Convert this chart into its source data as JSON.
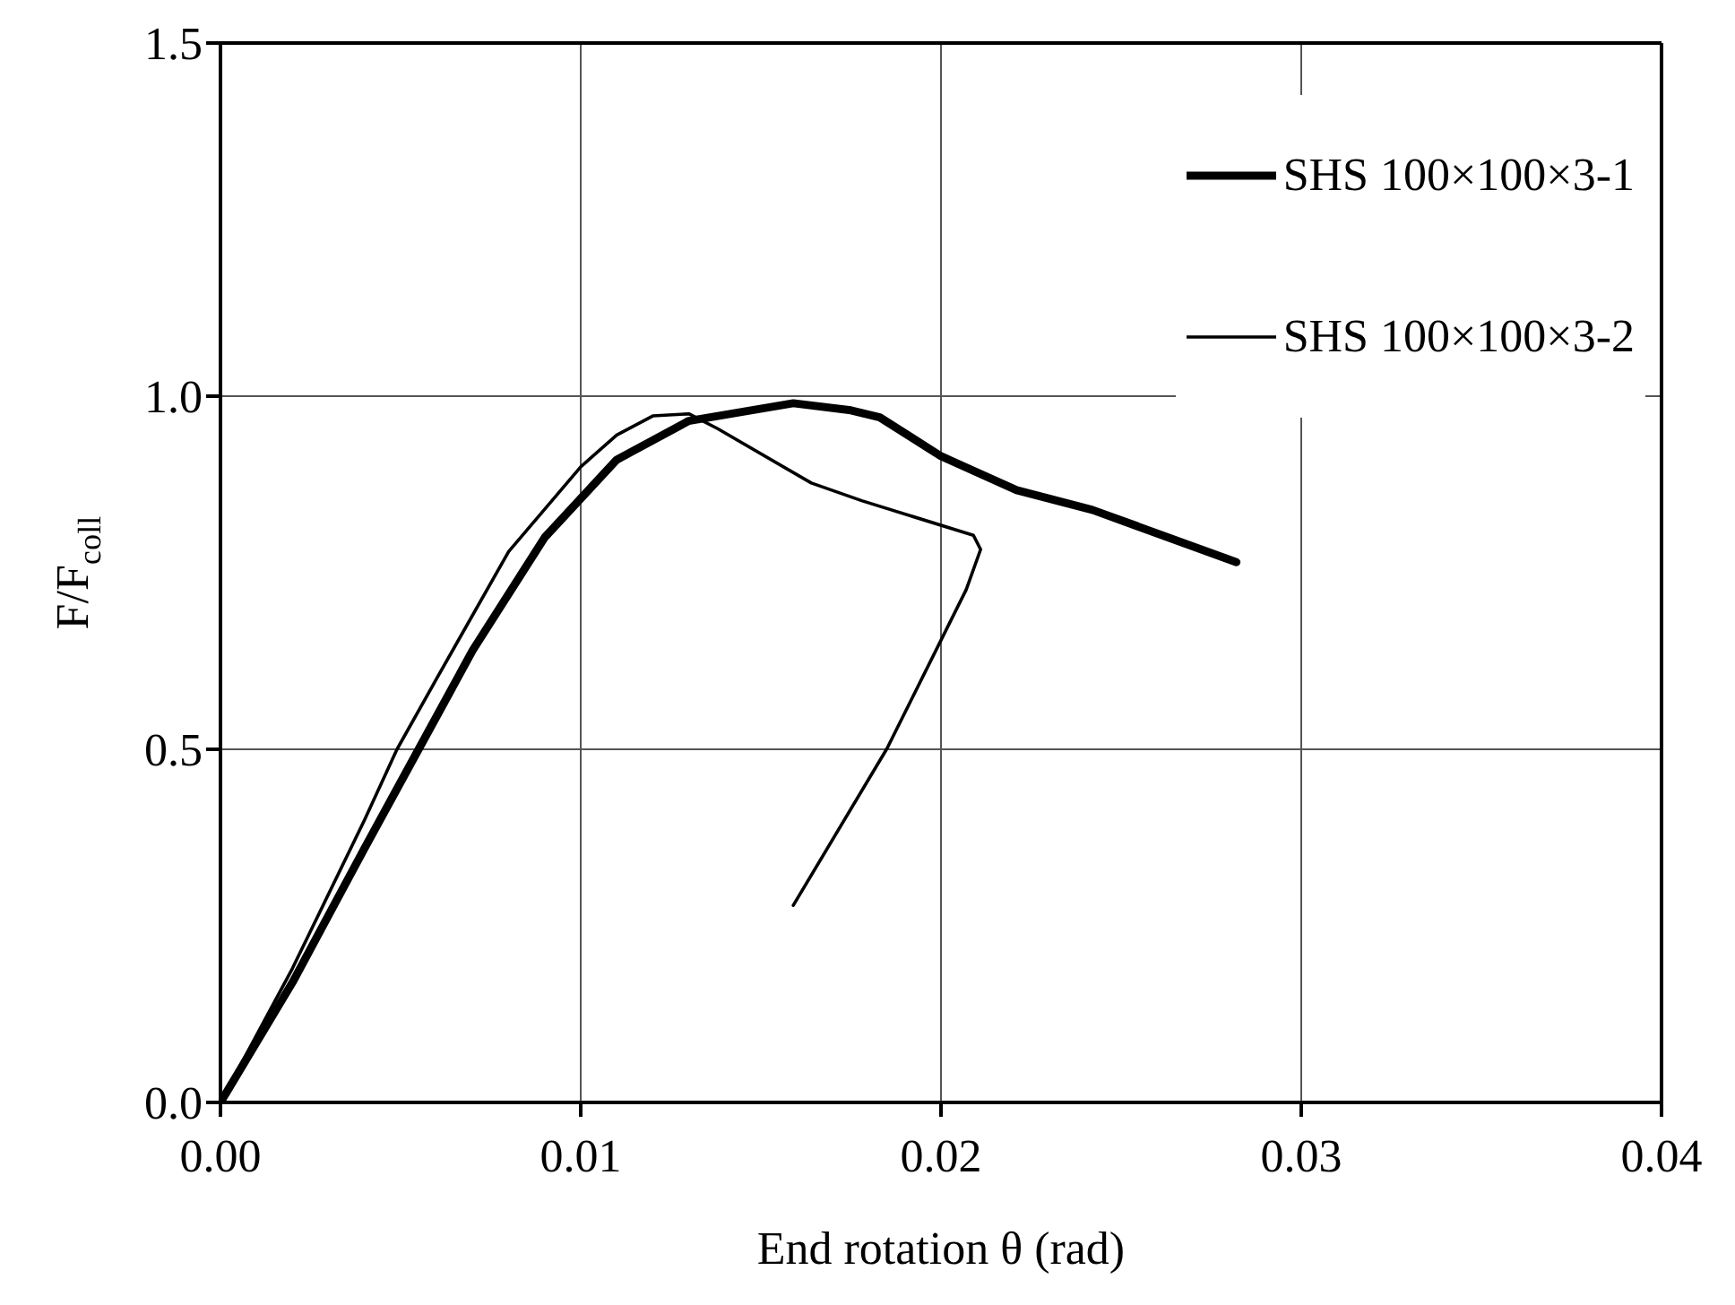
{
  "chart_data": {
    "type": "line",
    "xlabel": "End rotation θ (rad)",
    "ylabel": "F/F$_{coll}$",
    "xlim": [
      0,
      0.04
    ],
    "xticks": [
      {
        "value": 0,
        "label": "0.00"
      },
      {
        "value": 0.01,
        "label": "0.01"
      },
      {
        "value": 0.02,
        "label": "0.02"
      },
      {
        "value": 0.03,
        "label": "0.03"
      },
      {
        "value": 0.04,
        "label": "0.04"
      }
    ],
    "ylim": [
      0,
      1.5
    ],
    "yticks": [
      {
        "value": 0,
        "label": "0.0"
      },
      {
        "value": 0.5,
        "label": "0.5"
      },
      {
        "value": 1,
        "label": "1.0"
      },
      {
        "value": 1.5,
        "label": "1.5"
      }
    ],
    "grid": true,
    "legend": "top right",
    "marker": "none",
    "line_style": "solid",
    "series": [
      {
        "name": "SHS 100×100×3-1",
        "color": "#000000",
        "x": [
          0,
          0.002,
          0.004,
          0.0055,
          0.007,
          0.009,
          0.011,
          0.013,
          0.0159,
          0.0175,
          0.0183,
          0.02,
          0.0221,
          0.0242,
          0.0282
        ],
        "values": [
          0,
          0.17,
          0.36,
          0.5,
          0.64,
          0.8,
          0.91,
          0.965,
          0.99,
          0.98,
          0.97,
          0.915,
          0.867,
          0.839,
          0.765
        ]
      },
      {
        "name": "SHS 100×100×3-2",
        "color": "#000000",
        "x": [
          0,
          0.002,
          0.004,
          0.0049,
          0.006,
          0.008,
          0.01,
          0.011,
          0.012,
          0.013,
          0.0138,
          0.0164,
          0.0178,
          0.0209,
          0.0211,
          0.0207,
          0.0185,
          0.0159
        ],
        "values": [
          0,
          0.19,
          0.4,
          0.5,
          0.6,
          0.78,
          0.9,
          0.945,
          0.972,
          0.975,
          0.954,
          0.877,
          0.852,
          0.803,
          0.783,
          0.726,
          0.501,
          0.279
        ]
      }
    ]
  }
}
